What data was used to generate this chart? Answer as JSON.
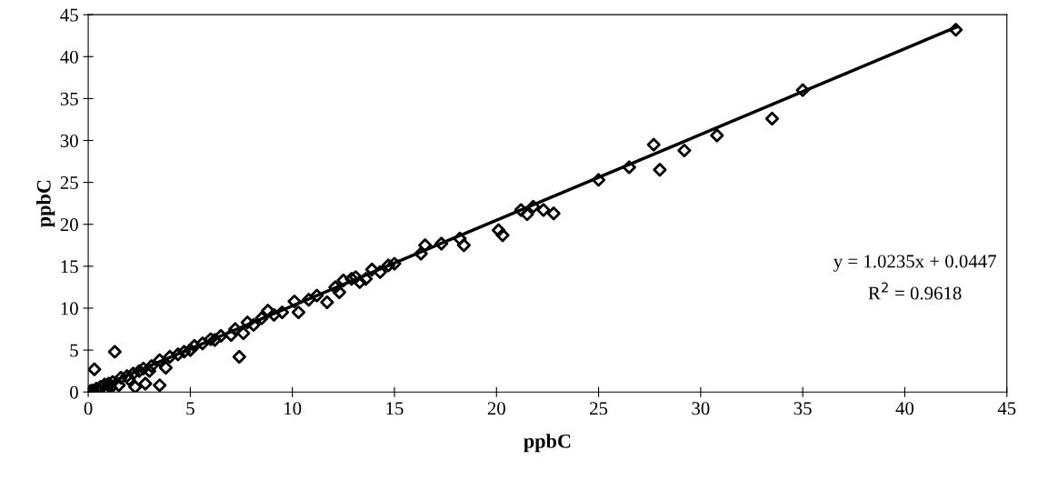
{
  "chart_data": {
    "type": "scatter",
    "xlabel": "ppbC",
    "ylabel": "ppbC",
    "xlim": [
      0,
      45
    ],
    "ylim": [
      0,
      45
    ],
    "xticks": [
      0,
      5,
      10,
      15,
      20,
      25,
      30,
      35,
      40,
      45
    ],
    "yticks": [
      0,
      5,
      10,
      15,
      20,
      25,
      30,
      35,
      40,
      45
    ],
    "grid": false,
    "legend": false,
    "annotations": [
      "y = 1.0235x + 0.0447",
      "R$^{2}$ = 0.9618"
    ],
    "series": [
      {
        "color": "#000000",
        "marker": "diamond",
        "x": [
          42.5,
          35,
          33.5,
          30.8,
          29.2,
          28,
          27.7,
          26.5,
          25,
          22.8,
          22.3,
          21.8,
          21.5,
          21.2,
          20.3,
          20.1,
          18.4,
          18.2,
          17.3,
          16.5,
          16.3,
          15,
          14.7,
          14.3,
          13.9,
          13.6,
          13.3,
          13.1,
          12.9,
          12.5,
          12.3,
          12.1,
          11.7,
          11.2,
          10.8,
          10.3,
          10.1,
          9.5,
          9.1,
          8.8,
          8.5,
          8.1,
          7.8,
          7.6,
          7.4,
          7.2,
          7,
          6.5,
          6.2,
          6,
          5.6,
          5.2,
          5,
          4.7,
          4.4,
          4,
          3.8,
          3.5,
          3.5,
          3.1,
          2.7,
          2.8,
          2.5,
          2.3,
          2.2,
          1.9,
          1.6,
          1.3,
          1.2,
          1,
          0.8,
          0.9,
          0.6,
          0.4,
          0.3,
          0.2,
          0.1,
          0.5,
          1.5,
          1.1,
          2,
          3
        ],
        "values": [
          43.2,
          36,
          32.6,
          30.6,
          28.8,
          26.5,
          29.5,
          26.8,
          25.3,
          21.3,
          21.7,
          22.1,
          21.2,
          21.7,
          18.7,
          19.3,
          17.5,
          18.3,
          17.7,
          17.5,
          16.5,
          15.3,
          15.1,
          14.3,
          14.6,
          13.5,
          13.1,
          13.7,
          13.5,
          13.3,
          11.9,
          12.5,
          10.7,
          11.5,
          11,
          9.5,
          10.8,
          9.5,
          9.2,
          9.7,
          8.8,
          8,
          8.3,
          7,
          4.2,
          7.5,
          6.8,
          6.7,
          6.2,
          6.3,
          5.8,
          5.5,
          5,
          4.8,
          4.5,
          4.2,
          2.9,
          0.8,
          3.8,
          3.1,
          2.8,
          1,
          2.5,
          0.6,
          2.2,
          1.9,
          1.7,
          4.8,
          1.2,
          1,
          0.9,
          0.3,
          0.6,
          0.4,
          2.7,
          0.2,
          0.1,
          0.1,
          0.8,
          0.5,
          1.5,
          2.5
        ]
      },
      {
        "type": "line",
        "color": "#000000",
        "line_style": "solid",
        "x": [
          0,
          42.5
        ],
        "values": [
          0.04,
          43.5
        ]
      }
    ]
  }
}
